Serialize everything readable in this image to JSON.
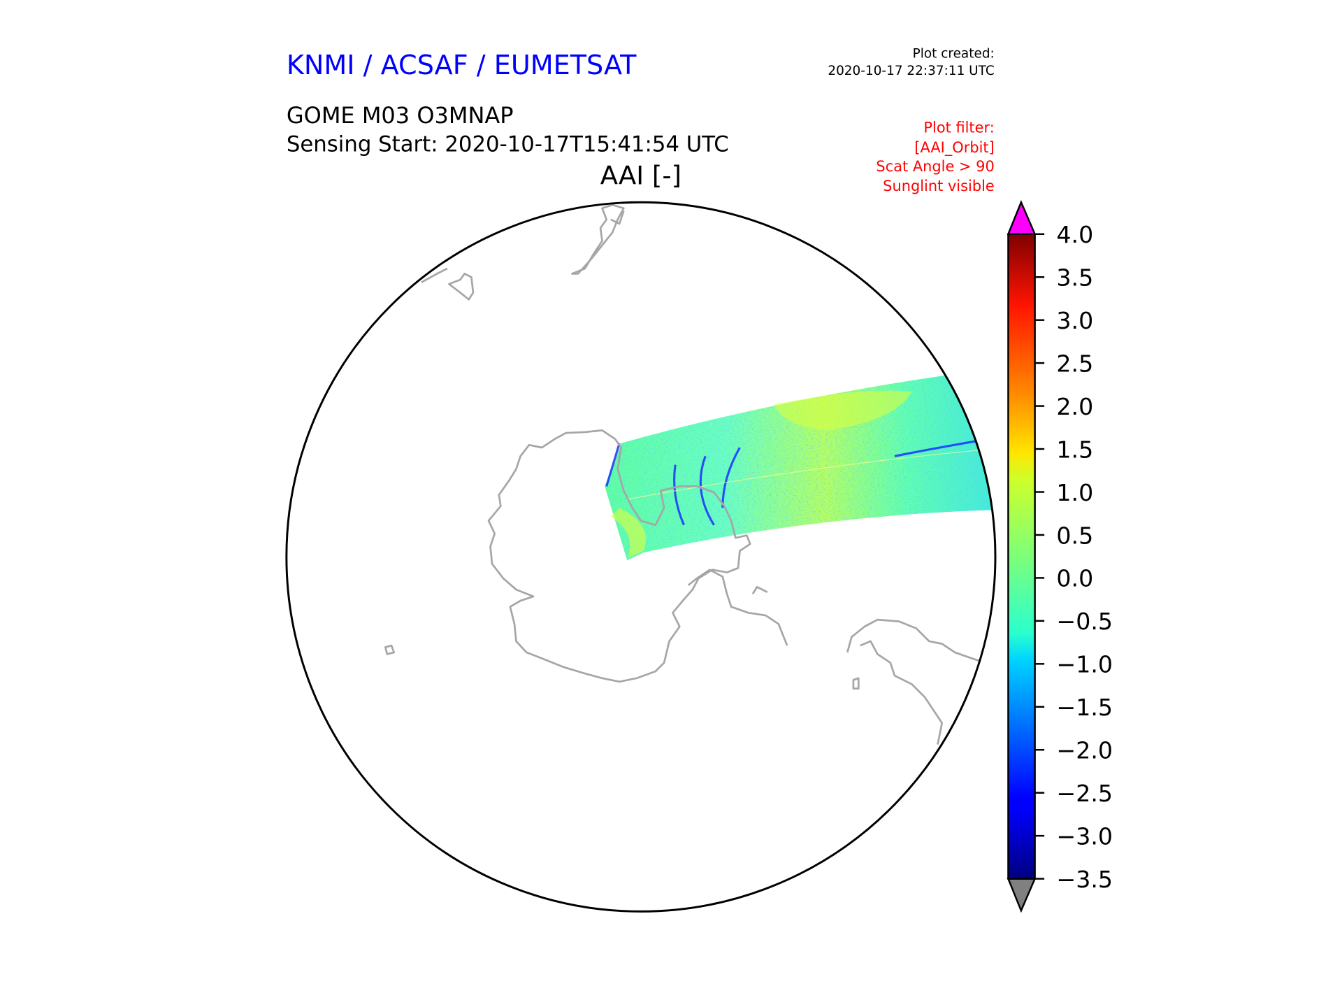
{
  "header": {
    "org": "KNMI / ACSAF / EUMETSAT",
    "created_label": "Plot created:",
    "created_value": "2020-10-17 22:37:11 UTC",
    "product": "GOME M03 O3MNAP",
    "sensing_start": "Sensing Start: 2020-10-17T15:41:54 UTC",
    "filter_lines": [
      "Plot filter:",
      "[AAI_Orbit]",
      "Scat Angle > 90",
      "Sunglint visible"
    ]
  },
  "colors": {
    "org": "#0000ff",
    "filter": "#ff0000",
    "over": "#ff00ff",
    "under": "#808080",
    "coast": "#a6a6a6"
  },
  "chart_data": {
    "type": "heatmap",
    "title": "AAI [-]",
    "projection": "south polar stereographic",
    "colormap": "jet",
    "clim": [
      -3.5,
      4.0
    ],
    "colorbar_ticks": [
      "4.0",
      "3.5",
      "3.0",
      "2.5",
      "2.0",
      "1.5",
      "1.0",
      "0.5",
      "0.0",
      "−0.5",
      "−1.0",
      "−1.5",
      "−2.0",
      "−2.5",
      "−3.0",
      "−3.5"
    ],
    "colorbar_extend": "both",
    "swath_typical_range": [
      -1.0,
      1.5
    ]
  }
}
